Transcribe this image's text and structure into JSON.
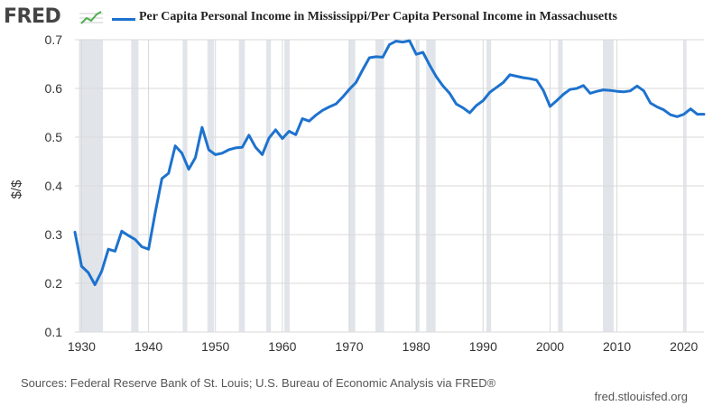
{
  "header": {
    "logo_text": "FRED",
    "legend_label": "Per Capita Personal Income in Mississippi/Per Capita Personal Income in Massachusetts",
    "series_color": "#1d72ce"
  },
  "footer": {
    "source": "Sources: Federal Reserve Bank of St. Louis; U.S. Bureau of Economic Analysis via FRED®",
    "site": "fred.stlouisfed.org"
  },
  "chart_data": {
    "type": "line",
    "ylabel": "$/$",
    "xlim": [
      1929,
      2023
    ],
    "ylim": [
      0.1,
      0.7
    ],
    "yticks": [
      0.1,
      0.2,
      0.3,
      0.4,
      0.5,
      0.6,
      0.7
    ],
    "xticks": [
      1930,
      1940,
      1950,
      1960,
      1970,
      1980,
      1990,
      2000,
      2010,
      2020
    ],
    "grid": true,
    "legend": "top",
    "recessions": [
      [
        1929.6,
        1933.2
      ],
      [
        1937.4,
        1938.5
      ],
      [
        1945.1,
        1945.8
      ],
      [
        1948.8,
        1949.8
      ],
      [
        1953.5,
        1954.4
      ],
      [
        1957.6,
        1958.3
      ],
      [
        1960.3,
        1961.1
      ],
      [
        1969.9,
        1970.9
      ],
      [
        1973.9,
        1975.2
      ],
      [
        1980.0,
        1980.5
      ],
      [
        1981.5,
        1982.9
      ],
      [
        1990.5,
        1991.2
      ],
      [
        2001.2,
        2001.9
      ],
      [
        2007.9,
        2009.5
      ],
      [
        2020.1,
        2020.4
      ]
    ],
    "series": [
      {
        "color": "#1d72ce",
        "x": [
          1929,
          1930,
          1931,
          1932,
          1933,
          1934,
          1935,
          1936,
          1937,
          1938,
          1939,
          1940,
          1941,
          1942,
          1943,
          1944,
          1945,
          1946,
          1947,
          1948,
          1949,
          1950,
          1951,
          1952,
          1953,
          1954,
          1955,
          1956,
          1957,
          1958,
          1959,
          1960,
          1961,
          1962,
          1963,
          1964,
          1965,
          1966,
          1967,
          1968,
          1969,
          1970,
          1971,
          1972,
          1973,
          1974,
          1975,
          1976,
          1977,
          1978,
          1979,
          1980,
          1981,
          1982,
          1983,
          1984,
          1985,
          1986,
          1987,
          1988,
          1989,
          1990,
          1991,
          1992,
          1993,
          1994,
          1995,
          1996,
          1997,
          1998,
          1999,
          2000,
          2001,
          2002,
          2003,
          2004,
          2005,
          2006,
          2007,
          2008,
          2009,
          2010,
          2011,
          2012,
          2013,
          2014,
          2015,
          2016,
          2017,
          2018,
          2019,
          2020,
          2021,
          2022,
          2023
        ],
        "values": [
          0.305,
          0.235,
          0.222,
          0.197,
          0.225,
          0.27,
          0.266,
          0.307,
          0.298,
          0.29,
          0.275,
          0.27,
          0.345,
          0.415,
          0.426,
          0.482,
          0.467,
          0.434,
          0.458,
          0.52,
          0.474,
          0.464,
          0.467,
          0.474,
          0.478,
          0.479,
          0.504,
          0.479,
          0.464,
          0.498,
          0.515,
          0.497,
          0.512,
          0.505,
          0.538,
          0.533,
          0.545,
          0.555,
          0.562,
          0.568,
          0.582,
          0.598,
          0.612,
          0.638,
          0.663,
          0.665,
          0.664,
          0.69,
          0.697,
          0.695,
          0.698,
          0.67,
          0.674,
          0.648,
          0.624,
          0.605,
          0.59,
          0.568,
          0.56,
          0.55,
          0.565,
          0.575,
          0.592,
          0.602,
          0.612,
          0.628,
          0.625,
          0.622,
          0.62,
          0.617,
          0.596,
          0.563,
          0.575,
          0.588,
          0.598,
          0.6,
          0.606,
          0.59,
          0.594,
          0.597,
          0.596,
          0.594,
          0.593,
          0.595,
          0.605,
          0.595,
          0.57,
          0.562,
          0.556,
          0.546,
          0.542,
          0.547,
          0.558,
          0.547,
          0.547
        ]
      }
    ]
  }
}
